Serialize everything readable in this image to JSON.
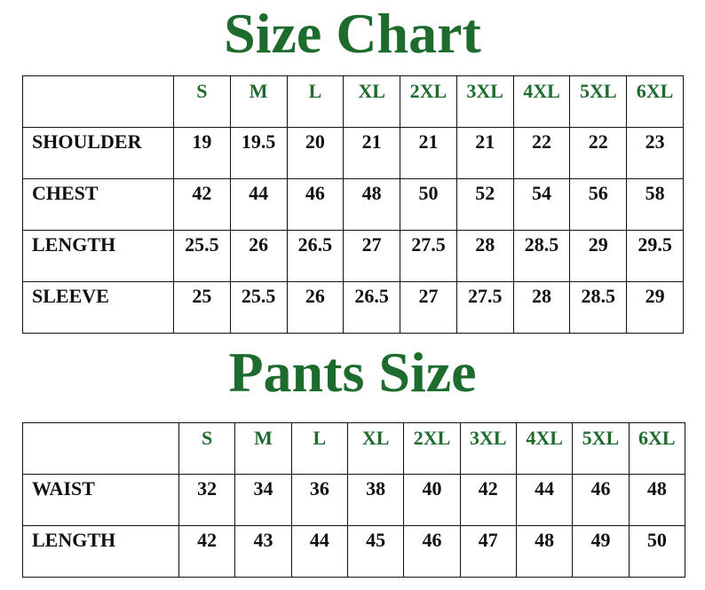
{
  "colors": {
    "title": "#1e6b2e",
    "size_header": "#1e6b2e",
    "text": "#111111",
    "border": "#111111"
  },
  "shirt": {
    "title": "Size Chart",
    "sizes": [
      "S",
      "M",
      "L",
      "XL",
      "2XL",
      "3XL",
      "4XL",
      "5XL",
      "6XL"
    ],
    "rows": [
      {
        "label": "SHOULDER",
        "values": [
          "19",
          "19.5",
          "20",
          "21",
          "21",
          "21",
          "22",
          "22",
          "23"
        ]
      },
      {
        "label": "CHEST",
        "values": [
          "42",
          "44",
          "46",
          "48",
          "50",
          "52",
          "54",
          "56",
          "58"
        ]
      },
      {
        "label": "LENGTH",
        "values": [
          "25.5",
          "26",
          "26.5",
          "27",
          "27.5",
          "28",
          "28.5",
          "29",
          "29.5"
        ]
      },
      {
        "label": "SLEEVE",
        "values": [
          "25",
          "25.5",
          "26",
          "26.5",
          "27",
          "27.5",
          "28",
          "28.5",
          "29"
        ]
      }
    ]
  },
  "pants": {
    "title": "Pants Size",
    "sizes": [
      "S",
      "M",
      "L",
      "XL",
      "2XL",
      "3XL",
      "4XL",
      "5XL",
      "6XL"
    ],
    "rows": [
      {
        "label": "WAIST",
        "values": [
          "32",
          "34",
          "36",
          "38",
          "40",
          "42",
          "44",
          "46",
          "48"
        ]
      },
      {
        "label": "LENGTH",
        "values": [
          "42",
          "43",
          "44",
          "45",
          "46",
          "47",
          "48",
          "49",
          "50"
        ]
      }
    ]
  }
}
